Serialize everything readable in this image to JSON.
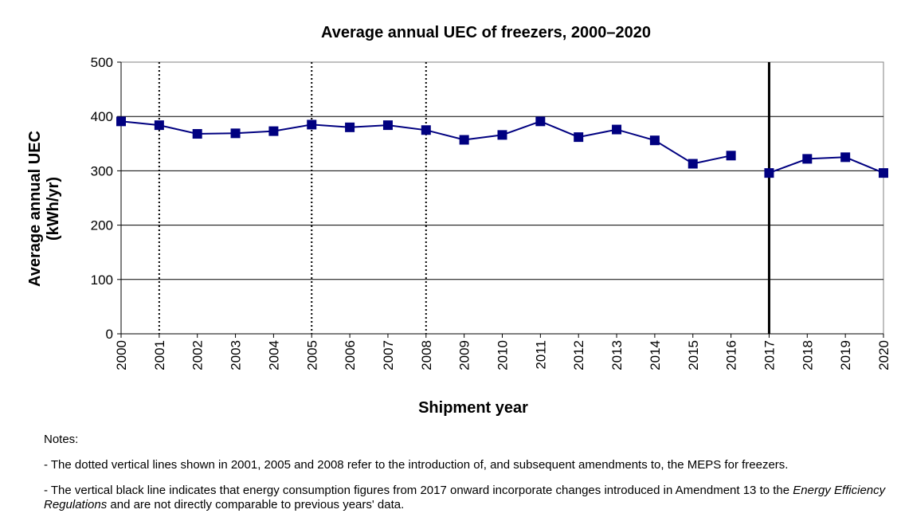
{
  "chart_data": {
    "type": "line",
    "title": "Average annual UEC of freezers, 2000–2020",
    "xlabel": "Shipment year",
    "ylabel": [
      "Average annual UEC",
      "(kWh/yr)"
    ],
    "ylim": [
      0,
      500
    ],
    "yticks": [
      0,
      100,
      200,
      300,
      400,
      500
    ],
    "x": [
      2000,
      2001,
      2002,
      2003,
      2004,
      2005,
      2006,
      2007,
      2008,
      2009,
      2010,
      2011,
      2012,
      2013,
      2014,
      2015,
      2016,
      2017,
      2018,
      2019,
      2020
    ],
    "series": [
      {
        "values": [
          391,
          384,
          368,
          369,
          373,
          385,
          380,
          384,
          375,
          357,
          366,
          391,
          362,
          376,
          356,
          313,
          328,
          296,
          322,
          325,
          296
        ],
        "break_after": 2016,
        "color": "#000080"
      }
    ],
    "grid": "horizontal",
    "dotted_vlines": [
      2001,
      2005,
      2008
    ],
    "solid_vline": 2017,
    "plot_background": "#ffffff"
  },
  "notes": {
    "heading": "Notes:",
    "note1": "- The dotted vertical lines shown in 2001, 2005 and 2008 refer to the introduction of, and subsequent amendments to, the MEPS for freezers.",
    "note2_before": "- The vertical black line indicates that energy consumption figures from 2017 onward incorporate changes introduced in Amendment 13 to the ",
    "note2_italic": "Energy Efficiency Regulations",
    "note2_after": " and are not directly comparable to previous years' data."
  }
}
